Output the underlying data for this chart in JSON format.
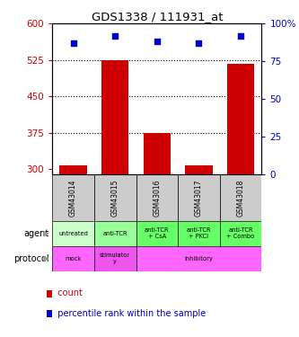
{
  "title": "GDS1338 / 111931_at",
  "samples": [
    "GSM43014",
    "GSM43015",
    "GSM43016",
    "GSM43017",
    "GSM43018"
  ],
  "bar_values": [
    308,
    525,
    375,
    308,
    518
  ],
  "scatter_values": [
    87,
    92,
    88,
    87,
    92
  ],
  "bar_color": "#cc0000",
  "scatter_color": "#0000cc",
  "ylim_left": [
    290,
    600
  ],
  "ylim_right": [
    0,
    100
  ],
  "yticks_left": [
    300,
    375,
    450,
    525,
    600
  ],
  "yticks_right": [
    0,
    25,
    50,
    75,
    100
  ],
  "hlines": [
    375,
    450,
    525
  ],
  "agent_labels": [
    "untreated",
    "anti-TCR",
    "anti-TCR\n+ CsA",
    "anti-TCR\n+ PKCi",
    "anti-TCR\n+ Combo"
  ],
  "agent_colors": [
    "#ccffcc",
    "#99ff99",
    "#66ff66",
    "#66ff66",
    "#66ff66"
  ],
  "protocol_spans": [
    {
      "label": "mock",
      "start": 0,
      "end": 1,
      "color": "#ff66ff"
    },
    {
      "label": "stimulator\ny",
      "start": 1,
      "end": 2,
      "color": "#ee55ee"
    },
    {
      "label": "inhibitory",
      "start": 2,
      "end": 5,
      "color": "#ff66ff"
    }
  ],
  "legend_count_color": "#cc0000",
  "legend_pct_color": "#0000cc",
  "background_color": "#ffffff",
  "axis_label_color_left": "#cc0000",
  "axis_label_color_right": "#0000cc",
  "sample_box_color": "#cccccc",
  "arrow_color": "#999999"
}
